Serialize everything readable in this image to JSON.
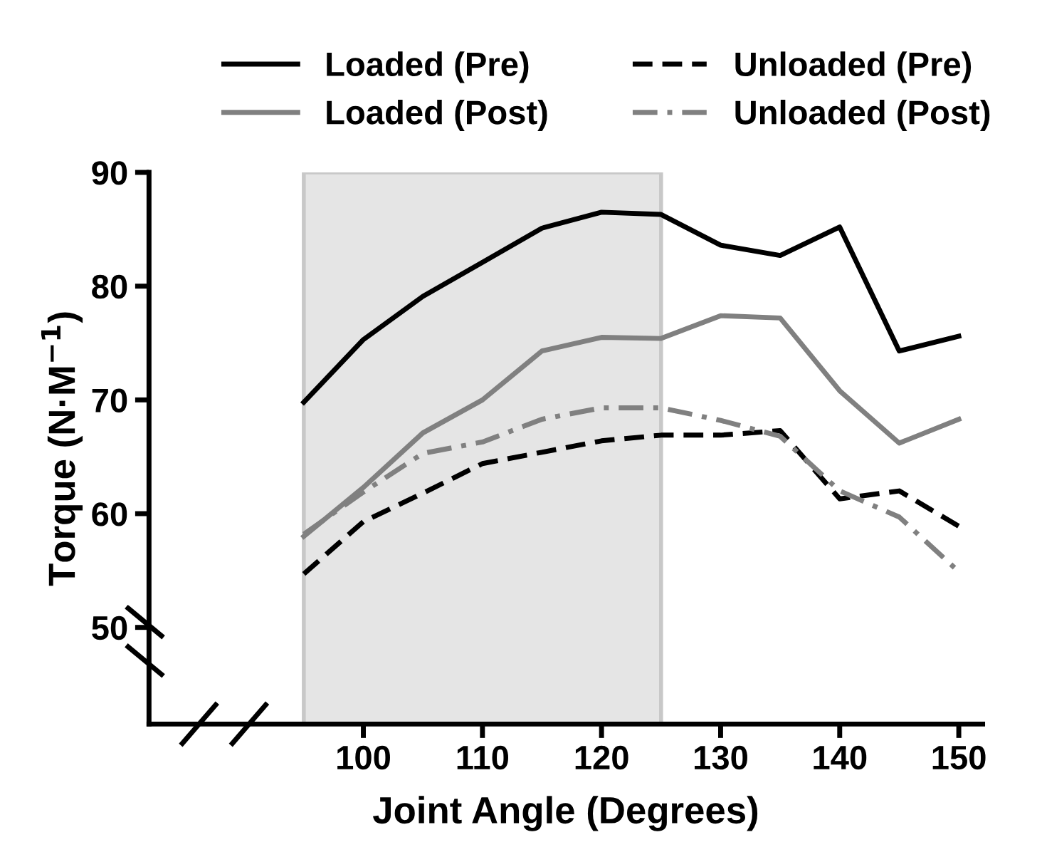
{
  "chart_data": {
    "type": "line",
    "xlabel": "Joint Angle (Degrees)",
    "ylabel": "Torque (N·M$^{−1}$)",
    "x": [
      95,
      100,
      105,
      110,
      115,
      120,
      125,
      130,
      135,
      140,
      145,
      150
    ],
    "series": [
      {
        "name": "Loaded (Pre)",
        "color": "#000000",
        "line_style": "solid",
        "values": [
          69.8,
          75.3,
          79.1,
          82.1,
          85.1,
          86.5,
          86.3,
          83.6,
          82.7,
          85.2,
          74.3,
          75.6
        ]
      },
      {
        "name": "Unloaded (Pre)",
        "color": "#000000",
        "line_style": "dashed",
        "values": [
          54.7,
          59.3,
          61.8,
          64.4,
          65.4,
          66.4,
          66.9,
          66.9,
          67.3,
          61.3,
          62.0,
          58.9
        ]
      },
      {
        "name": "Loaded (Post)",
        "color": "#808080",
        "line_style": "solid",
        "values": [
          58.0,
          62.3,
          67.1,
          70.0,
          74.3,
          75.5,
          75.4,
          77.4,
          77.2,
          70.8,
          66.2,
          68.3
        ]
      },
      {
        "name": "Unloaded (Post)",
        "color": "#808080",
        "line_style": "dashdot",
        "values": [
          58.2,
          61.9,
          65.3,
          66.3,
          68.3,
          69.3,
          69.3,
          68.2,
          66.8,
          62.0,
          59.7,
          54.9
        ]
      }
    ],
    "xlim": [
      82,
      152
    ],
    "ylim": [
      41.5,
      90
    ],
    "xticks": [
      100,
      110,
      120,
      130,
      140,
      150
    ],
    "yticks": [
      50,
      60,
      70,
      80,
      90
    ],
    "bands": [
      {
        "axis": "x",
        "from": 95,
        "to": 125,
        "color": "#e5e5e5"
      }
    ],
    "legend": "top",
    "grid": false,
    "marker": "none"
  }
}
